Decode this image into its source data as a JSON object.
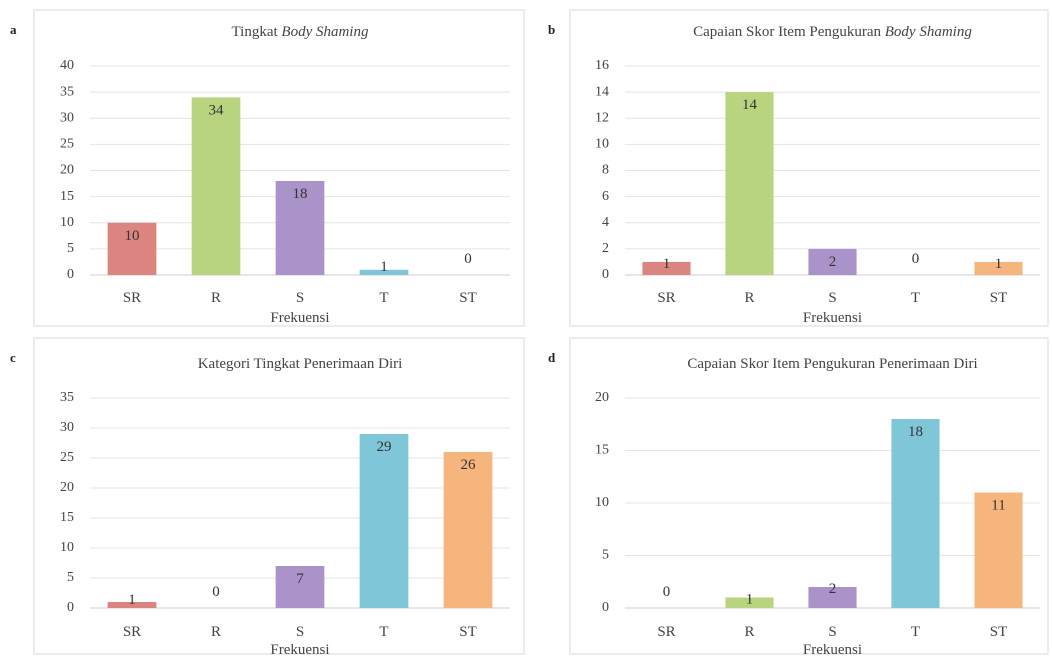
{
  "panel_letters": [
    "a",
    "b",
    "c",
    "d"
  ],
  "colors": {
    "SR": "#dc8580",
    "R": "#b9d47f",
    "S": "#a993c8",
    "T": "#7ec6d8",
    "ST": "#f7b57e"
  },
  "chart_data": [
    {
      "type": "bar",
      "title_plain": "Tingkat ",
      "title_italic": "Body Shaming",
      "xlabel": "Frekuensi",
      "categories": [
        "SR",
        "R",
        "S",
        "T",
        "ST"
      ],
      "values": [
        10,
        34,
        18,
        1,
        0
      ],
      "ylim": [
        0,
        40
      ],
      "yticks": [
        0,
        5,
        10,
        15,
        20,
        25,
        30,
        35,
        40
      ],
      "grid": true
    },
    {
      "type": "bar",
      "title_plain": "Capaian Skor Item Pengukuran ",
      "title_italic": "Body Shaming",
      "xlabel": "Frekuensi",
      "categories": [
        "SR",
        "R",
        "S",
        "T",
        "ST"
      ],
      "values": [
        1,
        14,
        2,
        0,
        1
      ],
      "ylim": [
        0,
        16
      ],
      "yticks": [
        0,
        2,
        4,
        6,
        8,
        10,
        12,
        14,
        16
      ],
      "grid": true
    },
    {
      "type": "bar",
      "title_plain": "Kategori Tingkat Penerimaan Diri",
      "title_italic": "",
      "xlabel": "Frekuensi",
      "categories": [
        "SR",
        "R",
        "S",
        "T",
        "ST"
      ],
      "values": [
        1,
        0,
        7,
        29,
        26
      ],
      "ylim": [
        0,
        35
      ],
      "yticks": [
        0,
        5,
        10,
        15,
        20,
        25,
        30,
        35
      ],
      "grid": true
    },
    {
      "type": "bar",
      "title_plain": "Capaian Skor Item Pengukuran Penerimaan Diri",
      "title_italic": "",
      "xlabel": "Frekuensi",
      "categories": [
        "SR",
        "R",
        "S",
        "T",
        "ST"
      ],
      "values": [
        0,
        1,
        2,
        18,
        11
      ],
      "ylim": [
        0,
        20
      ],
      "yticks": [
        0,
        5,
        10,
        15,
        20
      ],
      "grid": true
    }
  ]
}
